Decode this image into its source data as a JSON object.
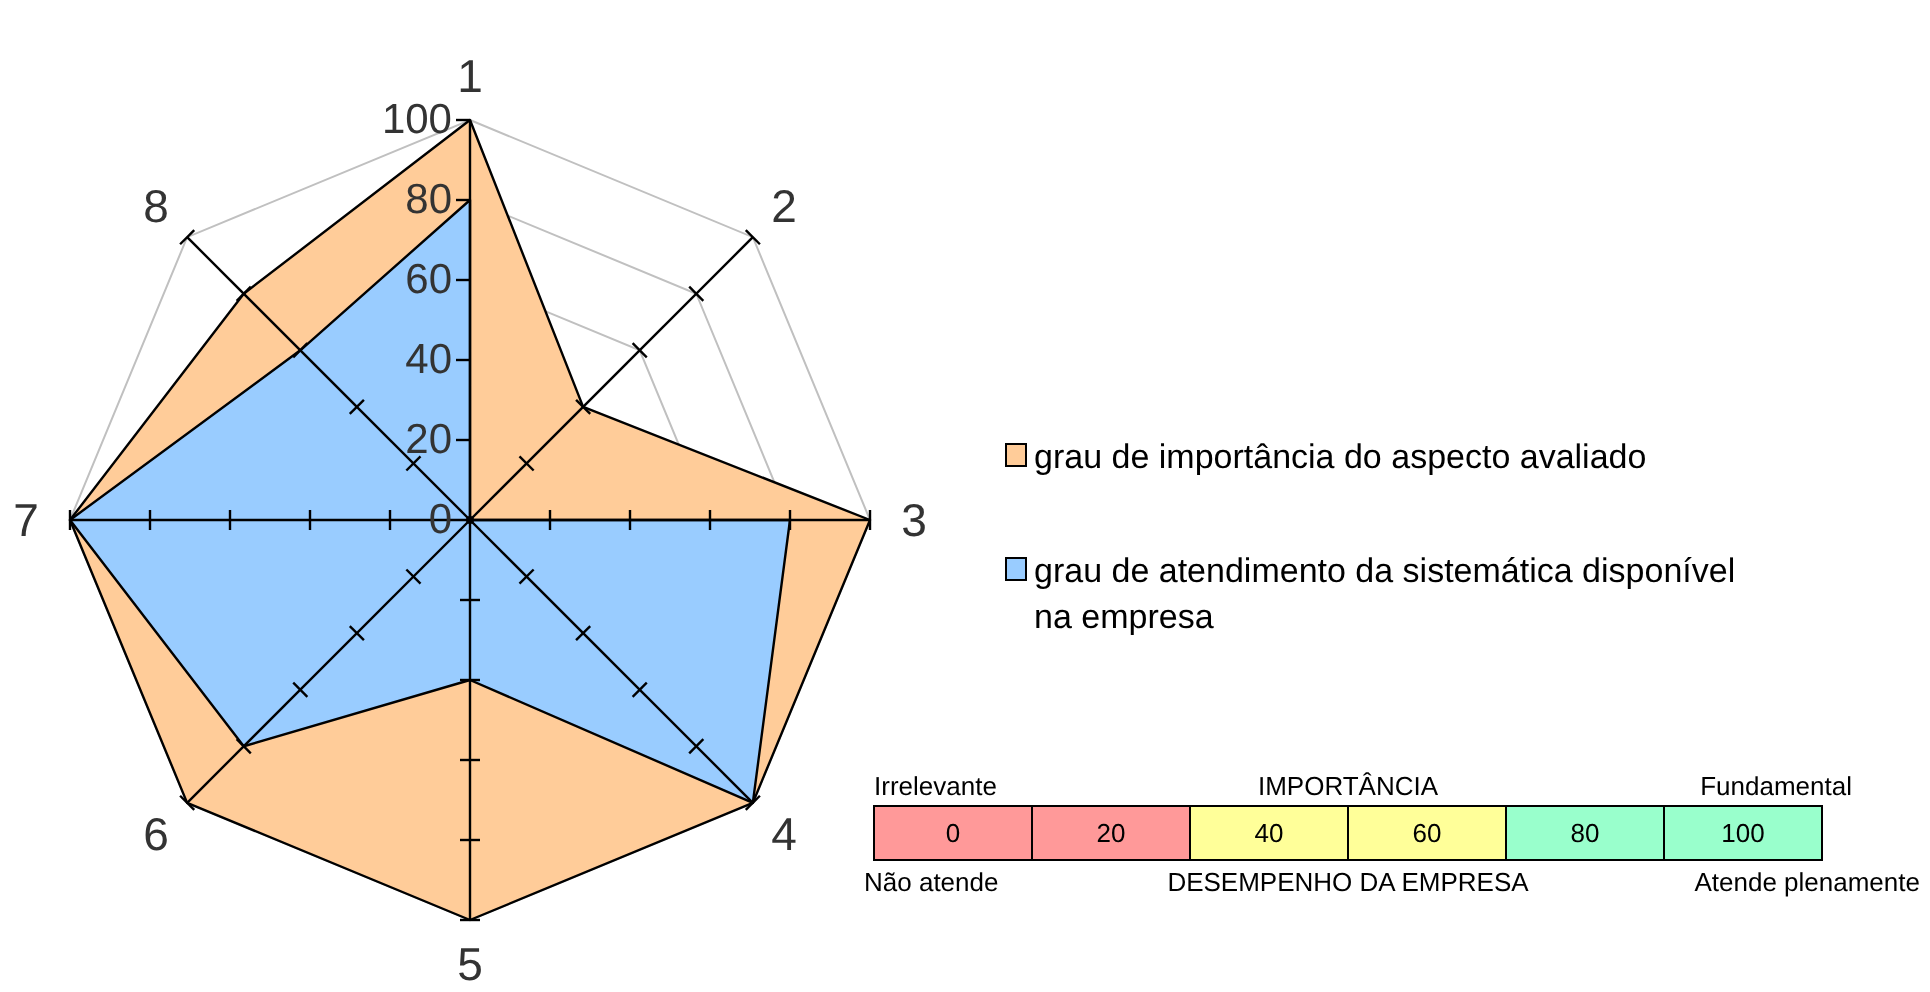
{
  "chart_data": [
    {
      "type": "radar",
      "categories": [
        "1",
        "2",
        "3",
        "4",
        "5",
        "6",
        "7",
        "8"
      ],
      "series": [
        {
          "name": "grau de importância do aspecto avaliado",
          "color": "#ffcc99",
          "values": [
            100,
            40,
            100,
            100,
            100,
            100,
            100,
            80
          ]
        },
        {
          "name": "grau de atendimento da sistemática disponível na empresa",
          "color": "#99ccff",
          "values": [
            80,
            0,
            80,
            100,
            40,
            80,
            100,
            60
          ]
        }
      ],
      "ylim": [
        0,
        100
      ],
      "yticks": [
        0,
        20,
        40,
        60,
        80,
        100
      ],
      "grid": true,
      "legend": "right"
    },
    {
      "type": "other",
      "values": [
        0,
        20,
        40,
        60,
        80,
        100
      ],
      "colors": [
        "#ff9999",
        "#ff9999",
        "#ffff99",
        "#ffff99",
        "#99ffcc",
        "#99ffcc"
      ],
      "data_labels": true,
      "annotations": [
        "Irrelevante",
        "IMPORTÂNCIA",
        "Fundamental",
        "Não atende",
        "DESEMPENHO DA EMPRESA",
        "Atende plenamente"
      ]
    }
  ]
}
